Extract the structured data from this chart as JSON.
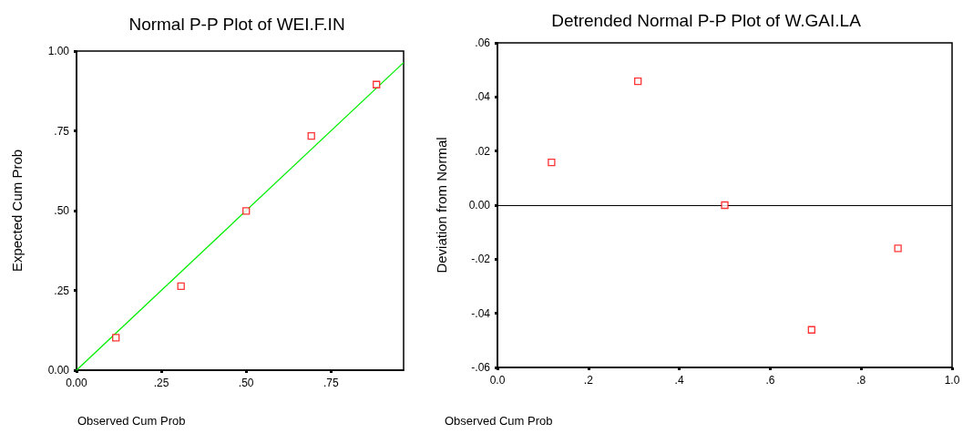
{
  "chart_data": [
    {
      "type": "scatter",
      "title": "Normal P-P Plot of WEI.F.IN",
      "xlabel": "Observed Cum Prob",
      "ylabel": "Expected Cum Prob",
      "xlim": [
        0,
        0.964
      ],
      "ylim": [
        0,
        1
      ],
      "xticks": [
        {
          "value": 0,
          "label": "0.00"
        },
        {
          "value": 0.25,
          "label": ".25"
        },
        {
          "value": 0.5,
          "label": ".50"
        },
        {
          "value": 0.75,
          "label": ".75"
        }
      ],
      "yticks": [
        {
          "value": 0,
          "label": "0.00"
        },
        {
          "value": 0.25,
          "label": ".25"
        },
        {
          "value": 0.5,
          "label": ".50"
        },
        {
          "value": 0.75,
          "label": ".75"
        },
        {
          "value": 1,
          "label": "1.00"
        }
      ],
      "grid": false,
      "marker": "square",
      "series": [
        {
          "color": "#ff0000",
          "x": [
            0.116,
            0.308,
            0.5,
            0.692,
            0.884
          ],
          "values": [
            0.102,
            0.263,
            0.499,
            0.734,
            0.895
          ]
        },
        {
          "type": "line",
          "marker": "none",
          "color": "#00ee00",
          "x": [
            0,
            0.964
          ],
          "values": [
            0,
            0.964
          ]
        }
      ]
    },
    {
      "type": "scatter",
      "title": "Detrended Normal P-P Plot of W.GAI.LA",
      "xlabel": "Observed Cum Prob",
      "ylabel": "Deviation from Normal",
      "xlim": [
        0,
        1
      ],
      "ylim": [
        -0.06,
        0.06
      ],
      "xticks": [
        {
          "value": 0,
          "label": "0.0"
        },
        {
          "value": 0.2,
          "label": ".2"
        },
        {
          "value": 0.4,
          "label": ".4"
        },
        {
          "value": 0.6,
          "label": ".6"
        },
        {
          "value": 0.8,
          "label": ".8"
        },
        {
          "value": 1,
          "label": "1.0"
        }
      ],
      "yticks": [
        {
          "value": -0.06,
          "label": "-.06"
        },
        {
          "value": -0.04,
          "label": "-.04"
        },
        {
          "value": -0.02,
          "label": "-.02"
        },
        {
          "value": 0,
          "label": "0.00"
        },
        {
          "value": 0.02,
          "label": ".02"
        },
        {
          "value": 0.04,
          "label": ".04"
        },
        {
          "value": 0.06,
          "label": ".06"
        }
      ],
      "grid": false,
      "marker": "square",
      "ref_lines": [
        {
          "axis": "y",
          "value": 0,
          "color": "#000000"
        }
      ],
      "series": [
        {
          "color": "#ff0000",
          "x": [
            0.119,
            0.309,
            0.5,
            0.691,
            0.881
          ],
          "values": [
            0.0158,
            0.0458,
            0,
            -0.0461,
            -0.016
          ]
        }
      ]
    }
  ]
}
